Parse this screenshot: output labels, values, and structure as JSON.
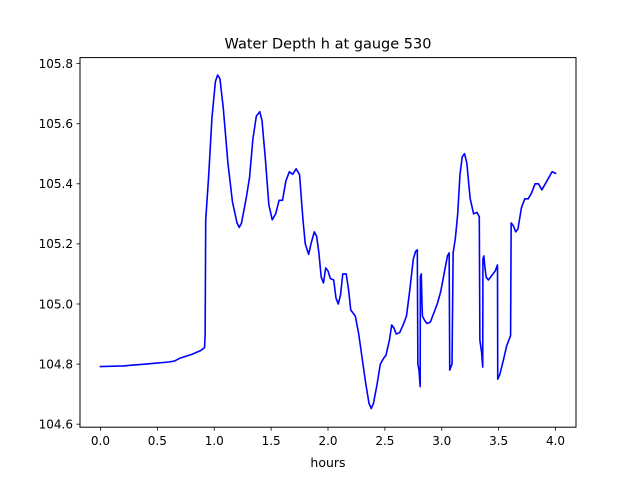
{
  "chart_data": {
    "type": "line",
    "title": "Water Depth h at gauge 530",
    "xlabel": "hours",
    "ylabel": "",
    "xlim": [
      -0.18,
      4.18
    ],
    "ylim": [
      104.59,
      105.82
    ],
    "x_ticks": [
      0.0,
      0.5,
      1.0,
      1.5,
      2.0,
      2.5,
      3.0,
      3.5,
      4.0
    ],
    "x_tick_labels": [
      "0.0",
      "0.5",
      "1.0",
      "1.5",
      "2.0",
      "2.5",
      "3.0",
      "3.5",
      "4.0"
    ],
    "y_ticks": [
      104.6,
      104.8,
      105.0,
      105.2,
      105.4,
      105.6,
      105.8
    ],
    "y_tick_labels": [
      "104.6",
      "104.8",
      "105.0",
      "105.2",
      "105.4",
      "105.6",
      "105.8"
    ],
    "grid": false,
    "line_color": "#0000ff",
    "series": [
      {
        "name": "",
        "points": [
          [
            0.0,
            104.792
          ],
          [
            0.2,
            104.794
          ],
          [
            0.4,
            104.8
          ],
          [
            0.6,
            104.807
          ],
          [
            0.65,
            104.81
          ],
          [
            0.7,
            104.82
          ],
          [
            0.8,
            104.832
          ],
          [
            0.88,
            104.845
          ],
          [
            0.915,
            104.855
          ],
          [
            0.92,
            104.9
          ],
          [
            0.925,
            105.28
          ],
          [
            0.95,
            105.42
          ],
          [
            0.98,
            105.62
          ],
          [
            1.01,
            105.74
          ],
          [
            1.03,
            105.762
          ],
          [
            1.05,
            105.75
          ],
          [
            1.08,
            105.65
          ],
          [
            1.12,
            105.47
          ],
          [
            1.16,
            105.34
          ],
          [
            1.2,
            105.27
          ],
          [
            1.22,
            105.255
          ],
          [
            1.24,
            105.27
          ],
          [
            1.28,
            105.35
          ],
          [
            1.31,
            105.42
          ],
          [
            1.34,
            105.55
          ],
          [
            1.37,
            105.625
          ],
          [
            1.4,
            105.64
          ],
          [
            1.42,
            105.61
          ],
          [
            1.45,
            105.48
          ],
          [
            1.48,
            105.33
          ],
          [
            1.51,
            105.28
          ],
          [
            1.54,
            105.3
          ],
          [
            1.57,
            105.345
          ],
          [
            1.6,
            105.345
          ],
          [
            1.63,
            105.41
          ],
          [
            1.66,
            105.44
          ],
          [
            1.69,
            105.432
          ],
          [
            1.72,
            105.45
          ],
          [
            1.75,
            105.43
          ],
          [
            1.78,
            105.28
          ],
          [
            1.8,
            105.2
          ],
          [
            1.83,
            105.165
          ],
          [
            1.85,
            105.2
          ],
          [
            1.88,
            105.24
          ],
          [
            1.9,
            105.225
          ],
          [
            1.92,
            105.17
          ],
          [
            1.94,
            105.09
          ],
          [
            1.96,
            105.07
          ],
          [
            1.98,
            105.12
          ],
          [
            2.0,
            105.11
          ],
          [
            2.02,
            105.085
          ],
          [
            2.05,
            105.08
          ],
          [
            2.07,
            105.02
          ],
          [
            2.09,
            105.0
          ],
          [
            2.11,
            105.03
          ],
          [
            2.13,
            105.1
          ],
          [
            2.16,
            105.1
          ],
          [
            2.18,
            105.05
          ],
          [
            2.2,
            104.98
          ],
          [
            2.24,
            104.96
          ],
          [
            2.27,
            104.9
          ],
          [
            2.3,
            104.82
          ],
          [
            2.33,
            104.74
          ],
          [
            2.36,
            104.67
          ],
          [
            2.38,
            104.652
          ],
          [
            2.4,
            104.67
          ],
          [
            2.43,
            104.73
          ],
          [
            2.46,
            104.8
          ],
          [
            2.49,
            104.82
          ],
          [
            2.51,
            104.83
          ],
          [
            2.54,
            104.88
          ],
          [
            2.56,
            104.93
          ],
          [
            2.58,
            104.92
          ],
          [
            2.6,
            104.9
          ],
          [
            2.63,
            104.905
          ],
          [
            2.66,
            104.93
          ],
          [
            2.69,
            104.96
          ],
          [
            2.72,
            105.05
          ],
          [
            2.75,
            105.15
          ],
          [
            2.77,
            105.175
          ],
          [
            2.785,
            105.18
          ],
          [
            2.79,
            104.8
          ],
          [
            2.8,
            104.78
          ],
          [
            2.81,
            104.725
          ],
          [
            2.812,
            105.09
          ],
          [
            2.82,
            105.1
          ],
          [
            2.825,
            105.02
          ],
          [
            2.83,
            104.96
          ],
          [
            2.85,
            104.945
          ],
          [
            2.87,
            104.935
          ],
          [
            2.9,
            104.94
          ],
          [
            2.93,
            104.97
          ],
          [
            2.96,
            105.0
          ],
          [
            2.99,
            105.04
          ],
          [
            3.02,
            105.1
          ],
          [
            3.05,
            105.16
          ],
          [
            3.065,
            105.17
          ],
          [
            3.07,
            104.78
          ],
          [
            3.09,
            104.8
          ],
          [
            3.1,
            105.17
          ],
          [
            3.12,
            105.22
          ],
          [
            3.14,
            105.3
          ],
          [
            3.16,
            105.43
          ],
          [
            3.18,
            105.49
          ],
          [
            3.2,
            105.5
          ],
          [
            3.22,
            105.47
          ],
          [
            3.25,
            105.35
          ],
          [
            3.28,
            105.3
          ],
          [
            3.31,
            105.305
          ],
          [
            3.33,
            105.29
          ],
          [
            3.335,
            104.88
          ],
          [
            3.35,
            104.84
          ],
          [
            3.36,
            104.79
          ],
          [
            3.362,
            105.15
          ],
          [
            3.37,
            105.16
          ],
          [
            3.38,
            105.12
          ],
          [
            3.39,
            105.09
          ],
          [
            3.41,
            105.08
          ],
          [
            3.43,
            105.09
          ],
          [
            3.47,
            105.11
          ],
          [
            3.49,
            105.13
          ],
          [
            3.492,
            104.75
          ],
          [
            3.51,
            104.765
          ],
          [
            3.54,
            104.81
          ],
          [
            3.57,
            104.86
          ],
          [
            3.6,
            104.89
          ],
          [
            3.605,
            104.895
          ],
          [
            3.61,
            105.27
          ],
          [
            3.63,
            105.26
          ],
          [
            3.65,
            105.24
          ],
          [
            3.67,
            105.25
          ],
          [
            3.7,
            105.32
          ],
          [
            3.73,
            105.35
          ],
          [
            3.76,
            105.35
          ],
          [
            3.79,
            105.37
          ],
          [
            3.82,
            105.4
          ],
          [
            3.85,
            105.4
          ],
          [
            3.88,
            105.38
          ],
          [
            3.91,
            105.4
          ],
          [
            3.94,
            105.42
          ],
          [
            3.97,
            105.44
          ],
          [
            4.0,
            105.435
          ]
        ]
      }
    ]
  }
}
